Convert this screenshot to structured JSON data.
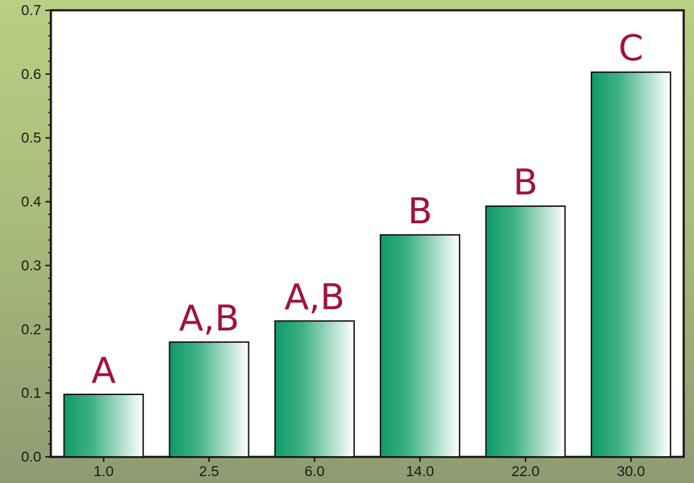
{
  "chart_data": {
    "type": "bar",
    "categories": [
      "1.0",
      "2.5",
      "6.0",
      "14.0",
      "22.0",
      "30.0"
    ],
    "values": [
      0.098,
      0.18,
      0.213,
      0.348,
      0.393,
      0.603
    ],
    "bar_labels": [
      "A",
      "A,B",
      "A,B",
      "B",
      "B",
      "C"
    ],
    "ylim": [
      0,
      0.7
    ],
    "yticks": [
      "0.0",
      "0.1",
      "0.2",
      "0.3",
      "0.4",
      "0.5",
      "0.6",
      "0.7"
    ],
    "title": "",
    "xlabel": "",
    "ylabel": "",
    "grid": false,
    "colors": {
      "bar_dark": "#0f9a68",
      "bar_light": "#ffffff",
      "label": "#a3123a",
      "plot_background": "#ffffff",
      "page_background": "#b3c681"
    }
  }
}
